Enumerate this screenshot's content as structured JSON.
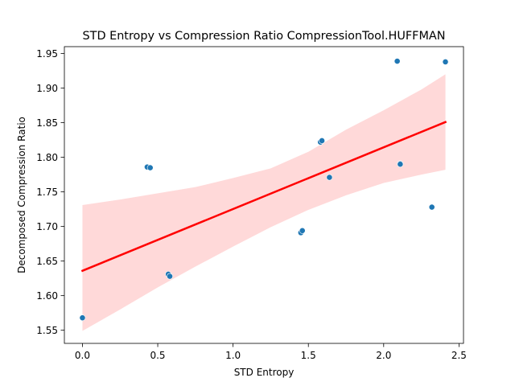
{
  "chart_data": {
    "type": "scatter",
    "title": "STD Entropy vs Compression Ratio CompressionTool.HUFFMAN",
    "xlabel": "STD Entropy",
    "ylabel": "Decomposed Compression Ratio",
    "xlim": [
      -0.12,
      2.53
    ],
    "ylim": [
      1.531,
      1.96
    ],
    "xticks": [
      0.0,
      0.5,
      1.0,
      1.5,
      2.0,
      2.5
    ],
    "xtick_labels": [
      "0.0",
      "0.5",
      "1.0",
      "1.5",
      "2.0",
      "2.5"
    ],
    "yticks": [
      1.55,
      1.6,
      1.65,
      1.7,
      1.75,
      1.8,
      1.85,
      1.9,
      1.95
    ],
    "ytick_labels": [
      "1.55",
      "1.60",
      "1.65",
      "1.70",
      "1.75",
      "1.80",
      "1.85",
      "1.90",
      "1.95"
    ],
    "grid": false,
    "point_color": "#1f77b4",
    "regression_color": "#ff0000",
    "band_color": "#ffb3b3",
    "points": [
      {
        "x": 0.0,
        "y": 1.568
      },
      {
        "x": 0.43,
        "y": 1.786
      },
      {
        "x": 0.45,
        "y": 1.785
      },
      {
        "x": 0.57,
        "y": 1.631
      },
      {
        "x": 0.58,
        "y": 1.628
      },
      {
        "x": 1.45,
        "y": 1.691
      },
      {
        "x": 1.46,
        "y": 1.694
      },
      {
        "x": 1.58,
        "y": 1.822
      },
      {
        "x": 1.59,
        "y": 1.824
      },
      {
        "x": 1.64,
        "y": 1.771
      },
      {
        "x": 2.09,
        "y": 1.939
      },
      {
        "x": 2.11,
        "y": 1.791
      },
      {
        "x": 2.11,
        "y": 1.79
      },
      {
        "x": 2.32,
        "y": 1.728
      },
      {
        "x": 2.41,
        "y": 1.938
      }
    ],
    "regression": {
      "x": [
        0.0,
        2.41
      ],
      "y": [
        1.636,
        1.851
      ]
    },
    "confidence_band": {
      "x": [
        0.0,
        0.25,
        0.5,
        0.75,
        1.0,
        1.25,
        1.5,
        1.75,
        2.0,
        2.25,
        2.41
      ],
      "upper": [
        1.731,
        1.739,
        1.748,
        1.757,
        1.77,
        1.784,
        1.808,
        1.84,
        1.868,
        1.898,
        1.92
      ],
      "lower": [
        1.549,
        1.58,
        1.612,
        1.642,
        1.671,
        1.699,
        1.724,
        1.745,
        1.763,
        1.775,
        1.782
      ]
    }
  }
}
